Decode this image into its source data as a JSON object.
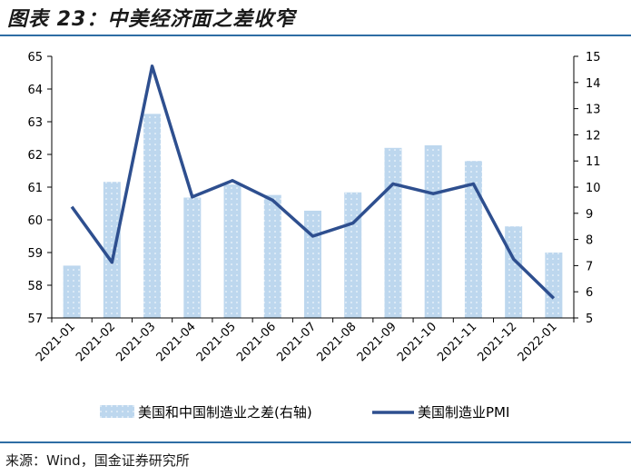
{
  "header": {
    "title": "图表 23：中美经济面之差收窄"
  },
  "footer": {
    "source": "来源：Wind，国金证券研究所"
  },
  "chart_data": {
    "type": "bar",
    "categories": [
      "2021-01",
      "2021-02",
      "2021-03",
      "2021-04",
      "2021-05",
      "2021-06",
      "2021-07",
      "2021-08",
      "2021-09",
      "2021-10",
      "2021-11",
      "2021-12",
      "2022-01"
    ],
    "series": [
      {
        "name": "美国和中国制造业之差(右轴)",
        "type": "bar",
        "axis": "right",
        "values": [
          7.0,
          10.2,
          12.8,
          9.6,
          10.1,
          9.7,
          9.1,
          9.8,
          11.5,
          11.6,
          11.0,
          8.5,
          7.5
        ],
        "color": "#bdd7ee"
      },
      {
        "name": "美国制造业PMI",
        "type": "line",
        "axis": "left",
        "values": [
          60.4,
          58.7,
          64.7,
          60.7,
          61.2,
          60.6,
          59.5,
          59.9,
          61.1,
          60.8,
          61.1,
          58.8,
          57.6
        ],
        "color": "#2e4f8f"
      }
    ],
    "y_left": {
      "min": 57,
      "max": 65,
      "ticks": [
        "57",
        "58",
        "59",
        "60",
        "61",
        "62",
        "63",
        "64",
        "65"
      ]
    },
    "y_right": {
      "min": 5,
      "max": 15,
      "ticks": [
        "5",
        "6",
        "7",
        "8",
        "9",
        "10",
        "11",
        "12",
        "13",
        "14",
        "15"
      ]
    },
    "grid": false,
    "legend_position": "bottom"
  }
}
